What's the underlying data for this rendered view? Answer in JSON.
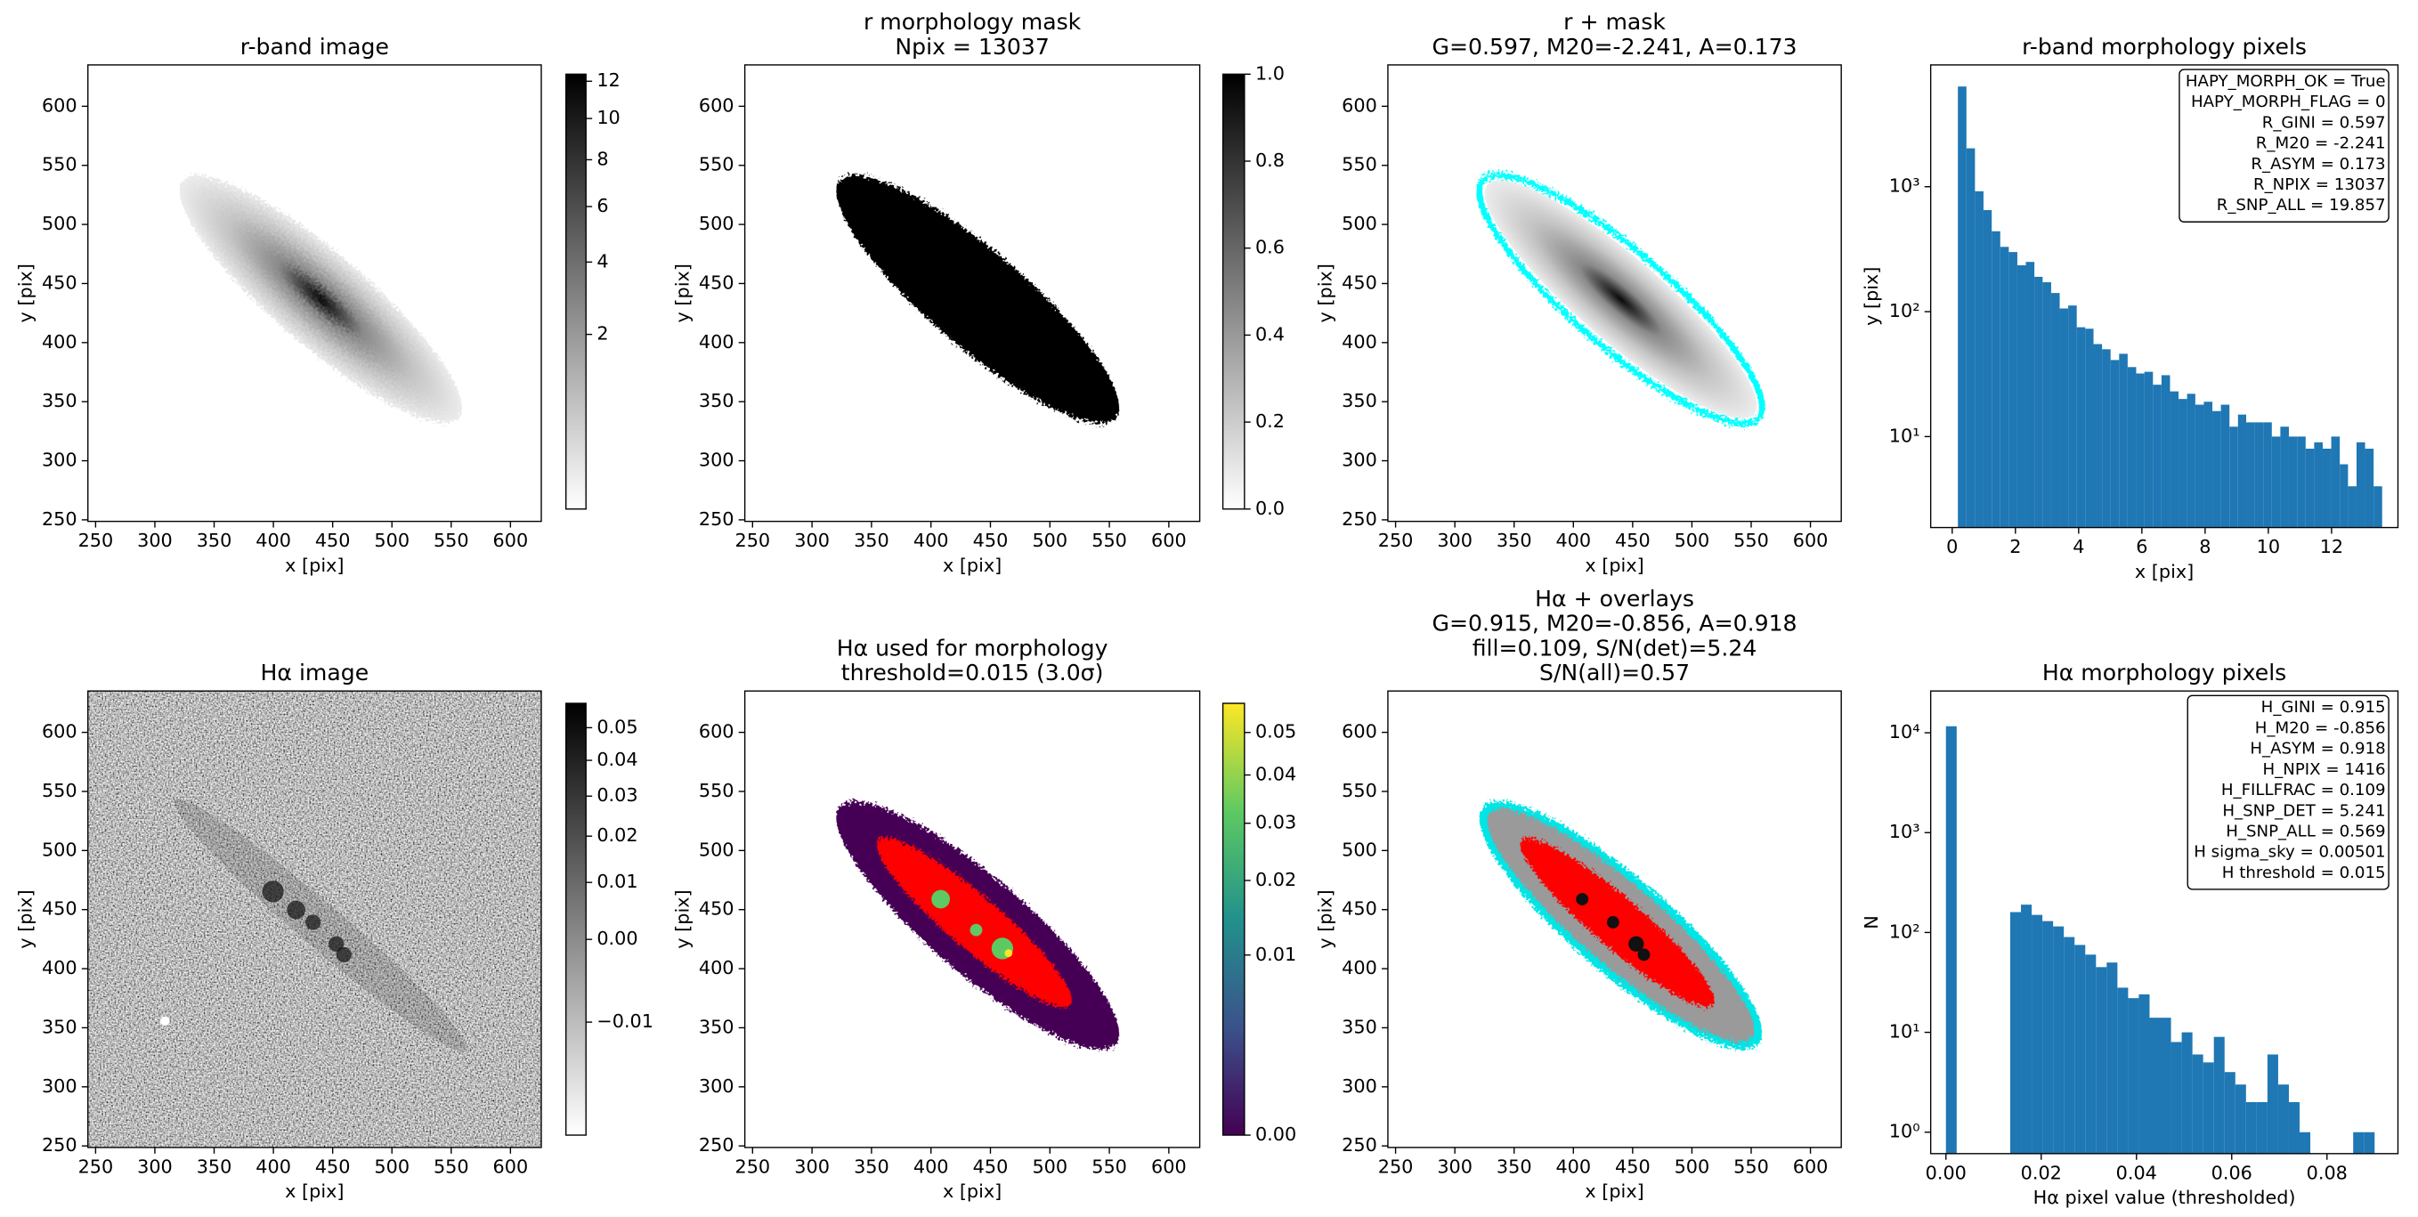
{
  "chart_data": [
    {
      "type": "image",
      "title": "r-band image",
      "xlabel": "x [pix]",
      "ylabel": "y [pix]",
      "xlim": [
        243.5,
        626
      ],
      "ylim": [
        248.7,
        635
      ],
      "xticks": [
        250,
        300,
        350,
        400,
        450,
        500,
        550,
        600
      ],
      "yticks": [
        250,
        300,
        350,
        400,
        450,
        500,
        550,
        600
      ],
      "colorbar": {
        "cmap": "gray_r",
        "scale": "sqrt",
        "lim": [
          0,
          12.4
        ],
        "ticks": [
          2,
          4,
          6,
          8,
          10,
          12
        ]
      }
    },
    {
      "type": "image",
      "title": [
        "r morphology mask",
        "Npix = 13037"
      ],
      "xlabel": "x [pix]",
      "ylabel": "y [pix]",
      "xlim": [
        243.5,
        626
      ],
      "ylim": [
        248.7,
        635
      ],
      "xticks": [
        250,
        300,
        350,
        400,
        450,
        500,
        550,
        600
      ],
      "yticks": [
        250,
        300,
        350,
        400,
        450,
        500,
        550,
        600
      ],
      "colorbar": {
        "cmap": "gray_r",
        "scale": "linear",
        "lim": [
          0,
          1
        ],
        "ticks": [
          {
            "value": 0,
            "label": "0.0"
          },
          {
            "value": 0.2,
            "label": "0.2"
          },
          {
            "value": 0.4,
            "label": "0.4"
          },
          {
            "value": 0.6,
            "label": "0.6"
          },
          {
            "value": 0.8,
            "label": "0.8"
          },
          {
            "value": 1,
            "label": "1.0"
          }
        ]
      }
    },
    {
      "type": "image",
      "title": [
        "r + mask",
        "G=0.597, M20=-2.241, A=0.173"
      ],
      "xlabel": "x [pix]",
      "ylabel": "y [pix]",
      "xlim": [
        243.5,
        626
      ],
      "ylim": [
        248.7,
        635
      ],
      "xticks": [
        250,
        300,
        350,
        400,
        450,
        500,
        550,
        600
      ],
      "yticks": [
        250,
        300,
        350,
        400,
        450,
        500,
        550,
        600
      ]
    },
    {
      "type": "histogram",
      "title": "r-band morphology pixels",
      "xlabel": "x [pix]",
      "ylabel": "y [pix]",
      "color": "#1f77b4",
      "yscale": "log",
      "xlim": [
        -0.68,
        14.1
      ],
      "ylim": [
        1.87,
        9440
      ],
      "xticks": [
        0,
        2,
        4,
        6,
        8,
        10,
        12
      ],
      "yticks": [
        {
          "value": 10,
          "label": "10¹"
        },
        {
          "value": 100,
          "label": "10²"
        },
        {
          "value": 1000,
          "label": "10³"
        }
      ],
      "bins": [
        0.18,
        0.45,
        0.72,
        0.99,
        1.25,
        1.52,
        1.79,
        2.06,
        2.33,
        2.6,
        2.86,
        3.13,
        3.4,
        3.67,
        3.94,
        4.21,
        4.47,
        4.74,
        5.01,
        5.28,
        5.55,
        5.82,
        6.08,
        6.35,
        6.62,
        6.89,
        7.16,
        7.43,
        7.69,
        7.96,
        8.23,
        8.5,
        8.77,
        9.04,
        9.3,
        9.57,
        9.84,
        10.11,
        10.38,
        10.65,
        10.91,
        11.18,
        11.45,
        11.72,
        11.99,
        12.26,
        12.52,
        12.79,
        13.06,
        13.33,
        13.6
      ],
      "values": [
        6340,
        2030,
        920,
        650,
        440,
        330,
        300,
        235,
        250,
        190,
        172,
        141,
        106,
        112,
        75,
        73,
        55,
        50,
        41,
        46,
        36,
        32,
        33,
        26,
        31,
        23,
        20,
        22,
        18,
        19,
        16,
        18,
        12,
        15,
        13,
        13,
        13,
        10,
        12,
        10,
        10,
        8,
        9,
        8,
        10,
        6,
        4,
        9,
        8,
        4
      ],
      "annotation": [
        "HAPY_MORPH_OK = True",
        "HAPY_MORPH_FLAG = 0",
        "R_GINI = 0.597",
        "R_M20 = -2.241",
        "R_ASYM = 0.173",
        "R_NPIX = 13037",
        "R_SNP_ALL = 19.857"
      ]
    },
    {
      "type": "image",
      "title": "Hα image",
      "xlabel": "x [pix]",
      "ylabel": "y [pix]",
      "xlim": [
        243.5,
        626
      ],
      "ylim": [
        248.7,
        635
      ],
      "xticks": [
        250,
        300,
        350,
        400,
        450,
        500,
        550,
        600
      ],
      "yticks": [
        250,
        300,
        350,
        400,
        450,
        500,
        550,
        600
      ],
      "colorbar": {
        "cmap": "gray_r",
        "scale": "sqrt",
        "lim": [
          -0.015,
          0.058
        ],
        "ticks": [
          {
            "value": -0.01,
            "label": "−0.01"
          },
          {
            "value": 0,
            "label": "0.00"
          },
          {
            "value": 0.01,
            "label": "0.01"
          },
          {
            "value": 0.02,
            "label": "0.02"
          },
          {
            "value": 0.03,
            "label": "0.03"
          },
          {
            "value": 0.04,
            "label": "0.04"
          },
          {
            "value": 0.05,
            "label": "0.05"
          }
        ]
      }
    },
    {
      "type": "image",
      "title": [
        "Hα used for morphology",
        "threshold=0.015 (3.0σ)"
      ],
      "xlabel": "x [pix]",
      "ylabel": "y [pix]",
      "xlim": [
        243.5,
        626
      ],
      "ylim": [
        248.7,
        635
      ],
      "xticks": [
        250,
        300,
        350,
        400,
        450,
        500,
        550,
        600
      ],
      "yticks": [
        250,
        300,
        350,
        400,
        450,
        500,
        550,
        600
      ],
      "colorbar": {
        "cmap": "viridis",
        "scale": "sqrt",
        "lim": [
          0,
          0.0575
        ],
        "ticks": [
          {
            "value": 0,
            "label": "0.00"
          },
          {
            "value": 0.01,
            "label": "0.01"
          },
          {
            "value": 0.02,
            "label": "0.02"
          },
          {
            "value": 0.03,
            "label": "0.03"
          },
          {
            "value": 0.04,
            "label": "0.04"
          },
          {
            "value": 0.05,
            "label": "0.05"
          }
        ]
      }
    },
    {
      "type": "image",
      "title": [
        "Hα + overlays",
        "G=0.915, M20=-0.856, A=0.918",
        "fill=0.109, S/N(det)=5.24",
        "S/N(all)=0.57"
      ],
      "xlabel": "x [pix]",
      "ylabel": "y [pix]",
      "xlim": [
        243.5,
        626
      ],
      "ylim": [
        248.7,
        635
      ],
      "xticks": [
        250,
        300,
        350,
        400,
        450,
        500,
        550,
        600
      ],
      "yticks": [
        250,
        300,
        350,
        400,
        450,
        500,
        550,
        600
      ]
    },
    {
      "type": "histogram",
      "title": "Hα morphology pixels",
      "xlabel": "Hα pixel value (thresholded)",
      "ylabel": "N",
      "color": "#1f77b4",
      "yscale": "log",
      "xlim": [
        -0.0032,
        0.0949
      ],
      "ylim": [
        0.61,
        26200
      ],
      "xticks": [
        {
          "value": 0,
          "label": "0.00"
        },
        {
          "value": 0.02,
          "label": "0.02"
        },
        {
          "value": 0.04,
          "label": "0.04"
        },
        {
          "value": 0.06,
          "label": "0.06"
        },
        {
          "value": 0.08,
          "label": "0.08"
        }
      ],
      "yticks": [
        {
          "value": 1,
          "label": "10⁰"
        },
        {
          "value": 10,
          "label": "10¹"
        },
        {
          "value": 100,
          "label": "10²"
        },
        {
          "value": 1000,
          "label": "10³"
        },
        {
          "value": 10000,
          "label": "10⁴"
        }
      ],
      "bins": [
        0,
        0.00225,
        0.0045,
        0.00675,
        0.009,
        0.01125,
        0.0135,
        0.01575,
        0.018,
        0.02025,
        0.0225,
        0.02475,
        0.027,
        0.02925,
        0.0315,
        0.03375,
        0.036,
        0.03825,
        0.0405,
        0.04275,
        0.045,
        0.04725,
        0.0495,
        0.05175,
        0.054,
        0.05625,
        0.0585,
        0.06075,
        0.063,
        0.06525,
        0.0675,
        0.06975,
        0.072,
        0.07425,
        0.0765,
        0.07875,
        0.081,
        0.08325,
        0.0855,
        0.08775,
        0.09
      ],
      "values": [
        11621,
        0,
        0,
        0,
        0,
        0,
        160,
        190,
        150,
        130,
        115,
        90,
        75,
        60,
        45,
        50,
        28,
        22,
        24,
        14,
        14,
        8,
        10,
        6,
        5,
        9,
        4,
        3,
        2,
        2,
        6,
        3,
        2,
        1,
        0,
        0,
        0,
        0,
        1,
        1
      ],
      "annotation": [
        "H_GINI = 0.915",
        "H_M20 = -0.856",
        "H_ASYM = 0.918",
        "H_NPIX = 1416",
        "H_FILLFRAC = 0.109",
        "H_SNP_DET = 5.241",
        "H_SNP_ALL = 0.569",
        "H sigma_sky = 0.00501",
        "H threshold = 0.015"
      ]
    }
  ]
}
